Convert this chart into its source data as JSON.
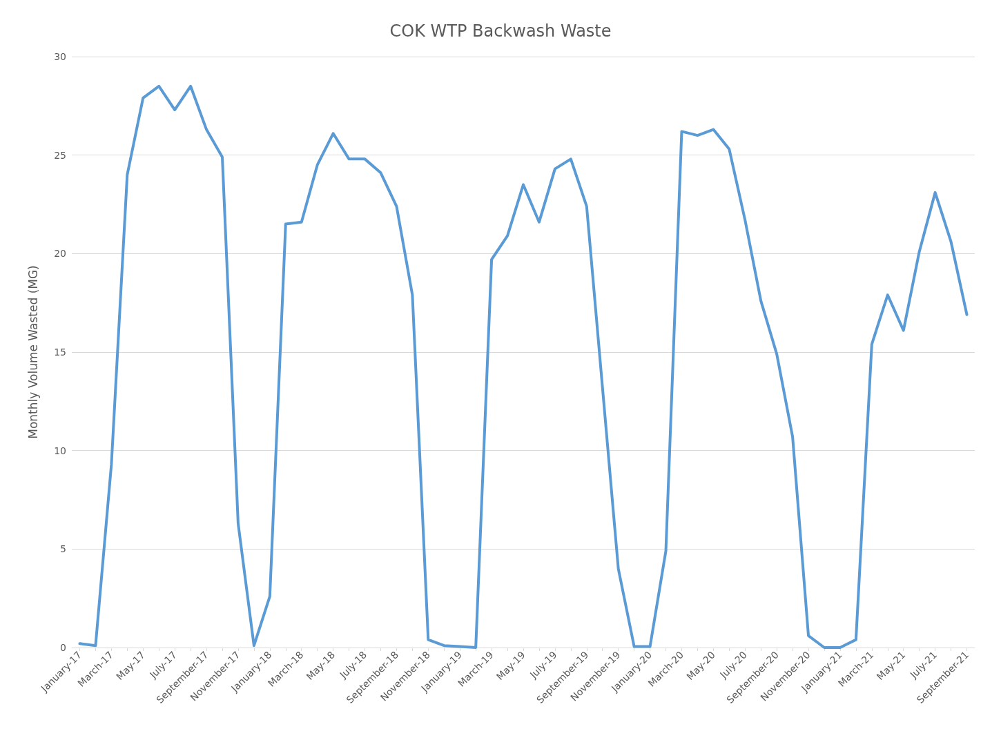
{
  "chart_data": {
    "type": "line",
    "title": "COK WTP Backwash Waste",
    "ylabel": "Monthly Volume Wasted (MG)",
    "categories": [
      "January-17",
      null,
      "March-17",
      null,
      "May-17",
      null,
      "July-17",
      null,
      "September-17",
      null,
      "November-17",
      null,
      "January-18",
      null,
      "March-18",
      null,
      "May-18",
      null,
      "July-18",
      null,
      "September-18",
      null,
      "November-18",
      null,
      "January-19",
      null,
      "March-19",
      null,
      "May-19",
      null,
      "July-19",
      null,
      "September-19",
      null,
      "November-19",
      null,
      "January-20",
      null,
      "March-20",
      null,
      "May-20",
      null,
      "July-20",
      null,
      "September-20",
      null,
      "November-20",
      null,
      "January-21",
      null,
      "March-21",
      null,
      "May-21",
      null,
      "July-21",
      null,
      "September-21"
    ],
    "series": [
      {
        "color": "#5b9bd5",
        "values": [
          0.2,
          0.1,
          9.3,
          24.0,
          27.9,
          28.5,
          27.3,
          28.5,
          26.3,
          24.9,
          6.3,
          0.1,
          2.6,
          21.5,
          21.6,
          24.5,
          26.1,
          24.8,
          24.8,
          24.1,
          22.4,
          17.9,
          0.4,
          0.1,
          0.05,
          0.0,
          19.7,
          20.9,
          23.5,
          21.6,
          24.3,
          24.8,
          22.4,
          13.2,
          4.0,
          0.05,
          0.05,
          4.9,
          26.2,
          26.0,
          26.3,
          25.3,
          21.7,
          17.6,
          14.9,
          10.7,
          0.6,
          0.0,
          0.0,
          0.4,
          15.4,
          17.9,
          16.1,
          20.1,
          23.1,
          20.6,
          16.9
        ]
      }
    ],
    "ylim": [
      0,
      30
    ],
    "yticks": [
      0,
      5,
      10,
      15,
      20,
      25,
      30
    ],
    "grid": "y",
    "marker": "none",
    "line_style": "solid"
  }
}
